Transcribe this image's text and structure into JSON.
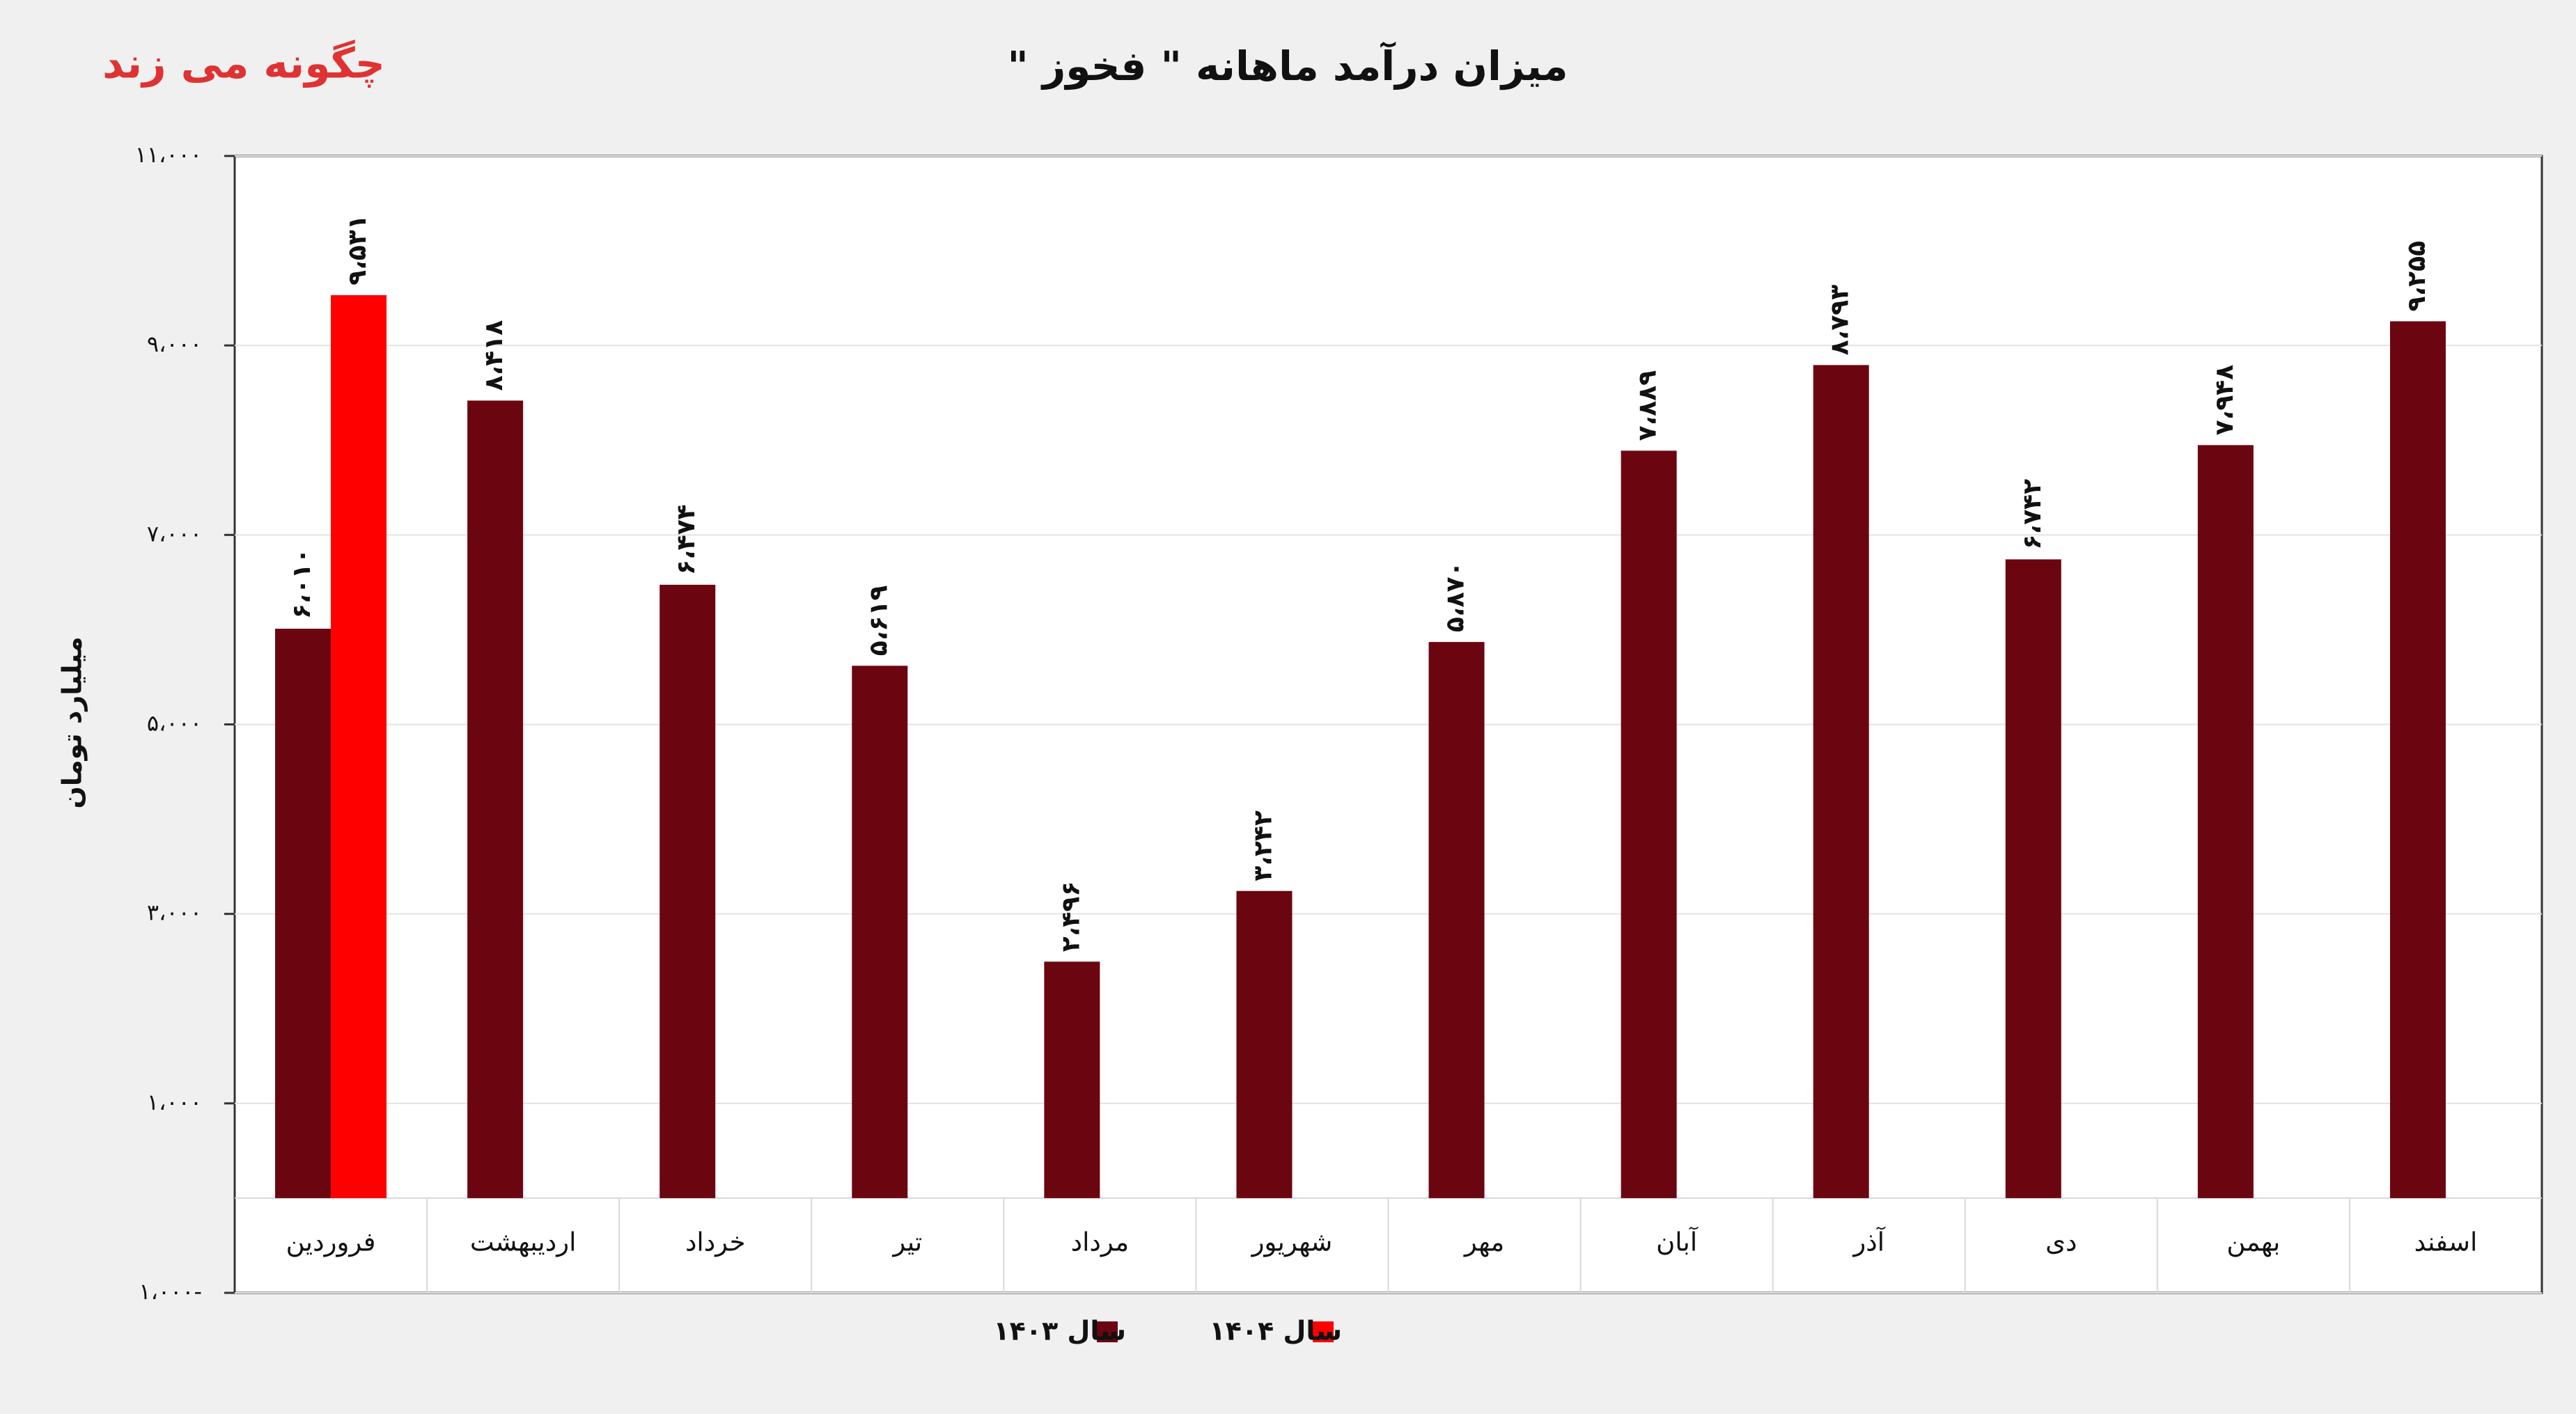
{
  "chart_data": {
    "type": "bar",
    "title": "میزان درآمد ماهانه \" فخوز \"",
    "y_label": "میلیارد تومان",
    "watermark": "چگونه می زند",
    "categories": [
      "فروردین",
      "اردیبهشت",
      "خرداد",
      "تیر",
      "مرداد",
      "شهریور",
      "مهر",
      "آبان",
      "آذر",
      "دی",
      "بهمن",
      "اسفند"
    ],
    "series": [
      {
        "name": "سال ۱۴۰۳",
        "color": "#6b0610",
        "values": [
          6010,
          8418,
          6474,
          5619,
          2496,
          3242,
          5870,
          7889,
          8793,
          6742,
          7948,
          9255
        ],
        "value_labels": [
          "۶،۰۱۰",
          "۸،۴۱۸",
          "۶،۴۷۴",
          "۵،۶۱۹",
          "۲،۴۹۶",
          "۳،۲۴۲",
          "۵،۸۷۰",
          "۷،۸۸۹",
          "۸،۷۹۳",
          "۶،۷۴۲",
          "۷،۹۴۸",
          "۹،۲۵۵"
        ]
      },
      {
        "name": "سال ۱۴۰۴",
        "color": "#ff0000",
        "values": [
          9531,
          null,
          null,
          null,
          null,
          null,
          null,
          null,
          null,
          null,
          null,
          null
        ],
        "value_labels": [
          "۹،۵۳۱",
          null,
          null,
          null,
          null,
          null,
          null,
          null,
          null,
          null,
          null,
          null
        ]
      }
    ],
    "ylim": [
      -1000,
      11000
    ],
    "yticks": [
      {
        "value": -1000,
        "label": "۱،۰۰۰-"
      },
      {
        "value": 1000,
        "label": "۱،۰۰۰"
      },
      {
        "value": 3000,
        "label": "۳،۰۰۰"
      },
      {
        "value": 5000,
        "label": "۵،۰۰۰"
      },
      {
        "value": 7000,
        "label": "۷،۰۰۰"
      },
      {
        "value": 9000,
        "label": "۹،۰۰۰"
      },
      {
        "value": 11000,
        "label": "۱۱،۰۰۰"
      }
    ],
    "grid": true
  }
}
